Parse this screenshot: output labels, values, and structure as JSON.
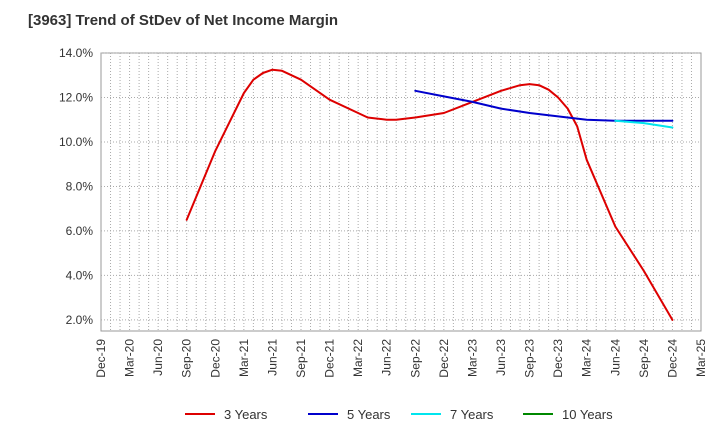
{
  "chart_data": {
    "type": "line",
    "title": "[3963]  Trend of StDev of Net Income Margin",
    "xlabel": "",
    "ylabel": "",
    "ylim": [
      1.5,
      14.0
    ],
    "y_ticks": [
      "2.0%",
      "4.0%",
      "6.0%",
      "8.0%",
      "10.0%",
      "12.0%",
      "14.0%"
    ],
    "y_tick_values": [
      2,
      4,
      6,
      8,
      10,
      12,
      14
    ],
    "x_ticks": [
      "Dec-19",
      "Mar-20",
      "Jun-20",
      "Sep-20",
      "Dec-20",
      "Mar-21",
      "Jun-21",
      "Sep-21",
      "Dec-21",
      "Mar-22",
      "Jun-22",
      "Sep-22",
      "Dec-22",
      "Mar-23",
      "Jun-23",
      "Sep-23",
      "Dec-23",
      "Mar-24",
      "Jun-24",
      "Sep-24",
      "Dec-24",
      "Mar-25"
    ],
    "grid": true,
    "legend_position": "bottom",
    "series": [
      {
        "name": "3 Years",
        "color": "#dd0000",
        "x": [
          "Sep-20",
          "Dec-20",
          "Mar-21",
          "Apr-21",
          "May-21",
          "Jun-21",
          "Jul-21",
          "Sep-21",
          "Dec-21",
          "Mar-22",
          "Apr-22",
          "May-22",
          "Jun-22",
          "Jul-22",
          "Sep-22",
          "Dec-22",
          "Mar-23",
          "Jun-23",
          "Aug-23",
          "Sep-23",
          "Oct-23",
          "Nov-23",
          "Dec-23",
          "Jan-24",
          "Feb-24",
          "Mar-24",
          "Jun-24",
          "Sep-24",
          "Dec-24"
        ],
        "values": [
          6.5,
          9.6,
          12.2,
          12.8,
          13.1,
          13.25,
          13.2,
          12.8,
          11.9,
          11.3,
          11.1,
          11.05,
          11.0,
          11.0,
          11.1,
          11.3,
          11.8,
          12.3,
          12.55,
          12.6,
          12.55,
          12.35,
          12.0,
          11.5,
          10.7,
          9.2,
          6.2,
          4.2,
          2.0
        ]
      },
      {
        "name": "5 Years",
        "color": "#0000cc",
        "x": [
          "Sep-22",
          "Dec-22",
          "Mar-23",
          "Jun-23",
          "Sep-23",
          "Dec-23",
          "Mar-24",
          "Jun-24",
          "Sep-24",
          "Dec-24"
        ],
        "values": [
          12.3,
          12.05,
          11.8,
          11.5,
          11.3,
          11.15,
          11.0,
          10.95,
          10.95,
          10.95
        ]
      },
      {
        "name": "7 Years",
        "color": "#00e5ee",
        "x": [
          "Jun-24",
          "Sep-24",
          "Dec-24"
        ],
        "values": [
          10.95,
          10.85,
          10.65
        ]
      },
      {
        "name": "10 Years",
        "color": "#008800",
        "x": [],
        "values": []
      }
    ]
  }
}
